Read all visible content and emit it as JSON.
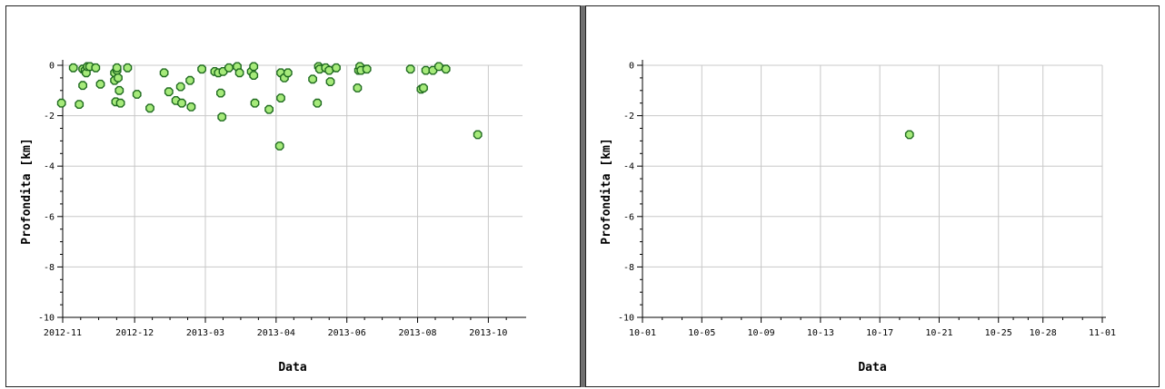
{
  "colors": {
    "marker_fill": "#a6ea7a",
    "marker_stroke": "#1f6b1f",
    "grid": "#c8c8c8",
    "axis": "#000000"
  },
  "chart_data": [
    {
      "type": "scatter",
      "xlabel": "Data",
      "ylabel": "Profondita [km]",
      "ylim": [
        -10,
        0
      ],
      "xlim": [
        "2012-10-31",
        "2013-11-25"
      ],
      "grid": true,
      "x_ticks": [
        {
          "label": "2012-11",
          "date": "2012-10-31"
        },
        {
          "label": "2012-12",
          "date": "2012-12-31"
        },
        {
          "label": "2013-03",
          "date": "2013-03-01"
        },
        {
          "label": "2013-04",
          "date": "2013-04-30"
        },
        {
          "label": "2013-06",
          "date": "2013-06-29"
        },
        {
          "label": "2013-08",
          "date": "2013-08-28"
        },
        {
          "label": "2013-10",
          "date": "2013-10-27"
        }
      ],
      "y_ticks": [
        0,
        -2,
        -4,
        -6,
        -8,
        -10
      ],
      "points": [
        {
          "x": "2012-10-30",
          "y": -1.5
        },
        {
          "x": "2012-11-09",
          "y": -0.1
        },
        {
          "x": "2012-11-14",
          "y": -1.55
        },
        {
          "x": "2012-11-17",
          "y": -0.8
        },
        {
          "x": "2012-11-17",
          "y": -0.15
        },
        {
          "x": "2012-11-19",
          "y": -0.2
        },
        {
          "x": "2012-11-20",
          "y": -0.3
        },
        {
          "x": "2012-11-21",
          "y": -0.05
        },
        {
          "x": "2012-11-23",
          "y": -0.05
        },
        {
          "x": "2012-11-28",
          "y": -0.1
        },
        {
          "x": "2012-12-02",
          "y": -0.75
        },
        {
          "x": "2012-12-14",
          "y": -0.3
        },
        {
          "x": "2012-12-14",
          "y": -0.6
        },
        {
          "x": "2012-12-15",
          "y": -1.45
        },
        {
          "x": "2012-12-16",
          "y": -0.2
        },
        {
          "x": "2012-12-16",
          "y": -0.1
        },
        {
          "x": "2012-12-17",
          "y": -0.5
        },
        {
          "x": "2012-12-18",
          "y": -1.0
        },
        {
          "x": "2012-12-19",
          "y": -1.5
        },
        {
          "x": "2012-12-25",
          "y": -0.1
        },
        {
          "x": "2013-01-02",
          "y": -1.15
        },
        {
          "x": "2013-01-13",
          "y": -1.7
        },
        {
          "x": "2013-01-25",
          "y": -0.3
        },
        {
          "x": "2013-01-29",
          "y": -1.05
        },
        {
          "x": "2013-02-04",
          "y": -1.4
        },
        {
          "x": "2013-02-08",
          "y": -0.85
        },
        {
          "x": "2013-02-09",
          "y": -1.5
        },
        {
          "x": "2013-02-16",
          "y": -0.6
        },
        {
          "x": "2013-02-17",
          "y": -1.65
        },
        {
          "x": "2013-02-26",
          "y": -0.15
        },
        {
          "x": "2013-03-09",
          "y": -0.25
        },
        {
          "x": "2013-03-12",
          "y": -0.3
        },
        {
          "x": "2013-03-14",
          "y": -1.1
        },
        {
          "x": "2013-03-15",
          "y": -2.05
        },
        {
          "x": "2013-03-16",
          "y": -0.25
        },
        {
          "x": "2013-03-21",
          "y": -0.1
        },
        {
          "x": "2013-03-28",
          "y": -0.05
        },
        {
          "x": "2013-03-30",
          "y": -0.3
        },
        {
          "x": "2013-04-09",
          "y": -0.25
        },
        {
          "x": "2013-04-11",
          "y": -0.4
        },
        {
          "x": "2013-04-11",
          "y": -0.05
        },
        {
          "x": "2013-04-12",
          "y": -1.5
        },
        {
          "x": "2013-04-24",
          "y": -1.75
        },
        {
          "x": "2013-05-03",
          "y": -3.2
        },
        {
          "x": "2013-05-04",
          "y": -0.3
        },
        {
          "x": "2013-05-04",
          "y": -1.3
        },
        {
          "x": "2013-05-07",
          "y": -0.5
        },
        {
          "x": "2013-05-10",
          "y": -0.3
        },
        {
          "x": "2013-05-31",
          "y": -0.55
        },
        {
          "x": "2013-06-04",
          "y": -1.5
        },
        {
          "x": "2013-06-05",
          "y": -0.05
        },
        {
          "x": "2013-06-06",
          "y": -0.15
        },
        {
          "x": "2013-06-11",
          "y": -0.1
        },
        {
          "x": "2013-06-14",
          "y": -0.2
        },
        {
          "x": "2013-06-15",
          "y": -0.65
        },
        {
          "x": "2013-06-20",
          "y": -0.1
        },
        {
          "x": "2013-07-08",
          "y": -0.9
        },
        {
          "x": "2013-07-09",
          "y": -0.2
        },
        {
          "x": "2013-07-10",
          "y": -0.05
        },
        {
          "x": "2013-07-11",
          "y": -0.2
        },
        {
          "x": "2013-07-16",
          "y": -0.15
        },
        {
          "x": "2013-08-22",
          "y": -0.15
        },
        {
          "x": "2013-08-31",
          "y": -0.95
        },
        {
          "x": "2013-09-02",
          "y": -0.9
        },
        {
          "x": "2013-09-04",
          "y": -0.2
        },
        {
          "x": "2013-09-10",
          "y": -0.2
        },
        {
          "x": "2013-09-15",
          "y": -0.05
        },
        {
          "x": "2013-09-21",
          "y": -0.15
        },
        {
          "x": "2013-10-18",
          "y": -2.75
        }
      ]
    },
    {
      "type": "scatter",
      "xlabel": "Data",
      "ylabel": "Profondita [km]",
      "ylim": [
        -10,
        0
      ],
      "xlim": [
        "2013-10-01",
        "2013-11-01"
      ],
      "grid": true,
      "x_ticks": [
        {
          "label": "10-01",
          "date": "2013-10-01"
        },
        {
          "label": "10-05",
          "date": "2013-10-05"
        },
        {
          "label": "10-09",
          "date": "2013-10-09"
        },
        {
          "label": "10-13",
          "date": "2013-10-13"
        },
        {
          "label": "10-17",
          "date": "2013-10-17"
        },
        {
          "label": "10-21",
          "date": "2013-10-21"
        },
        {
          "label": "10-25",
          "date": "2013-10-25"
        },
        {
          "label": "10-28",
          "date": "2013-10-28"
        },
        {
          "label": "11-01",
          "date": "2013-11-01"
        }
      ],
      "y_ticks": [
        0,
        -2,
        -4,
        -6,
        -8,
        -10
      ],
      "points": [
        {
          "x": "2013-10-19",
          "y": -2.75
        }
      ]
    }
  ]
}
